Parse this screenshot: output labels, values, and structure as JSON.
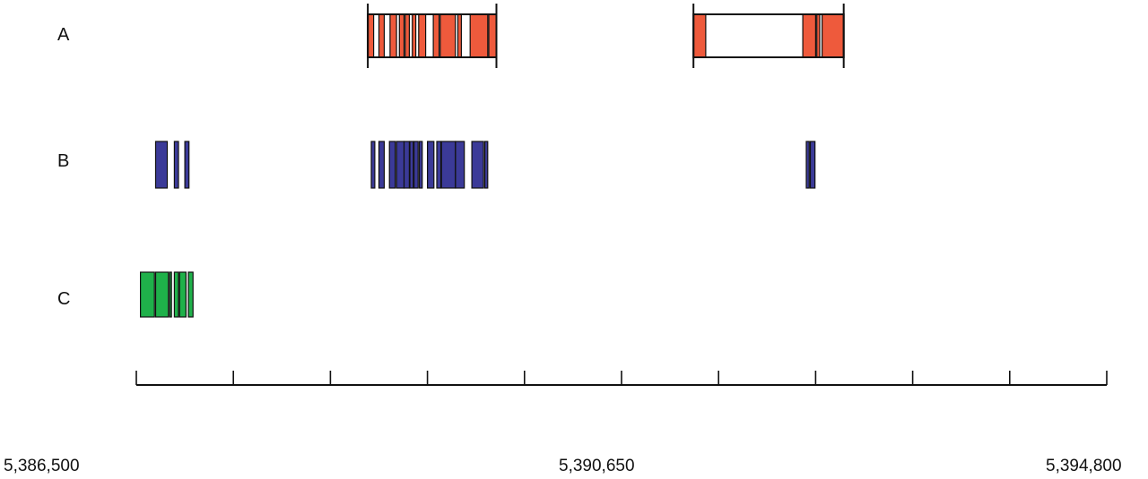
{
  "colors": {
    "track_a": "#ee5a3c",
    "track_b": "#3b3a98",
    "track_c": "#1fb14a",
    "outline": "#111111"
  },
  "tracks": [
    {
      "label": "A",
      "color_key": "track_a",
      "groups": [
        {
          "start": 5388480,
          "end": 5389580
        },
        {
          "start": 5391265,
          "end": 5392550
        }
      ],
      "features": [
        {
          "start": 5388480,
          "end": 5388530
        },
        {
          "start": 5388575,
          "end": 5388620
        },
        {
          "start": 5388670,
          "end": 5388725
        },
        {
          "start": 5388750,
          "end": 5388790
        },
        {
          "start": 5388800,
          "end": 5388835
        },
        {
          "start": 5388860,
          "end": 5388890
        },
        {
          "start": 5388915,
          "end": 5388975
        },
        {
          "start": 5389040,
          "end": 5389090
        },
        {
          "start": 5389100,
          "end": 5389230
        },
        {
          "start": 5389250,
          "end": 5389280
        },
        {
          "start": 5389355,
          "end": 5389505
        },
        {
          "start": 5389515,
          "end": 5389580
        },
        {
          "start": 5391265,
          "end": 5391370
        },
        {
          "start": 5392200,
          "end": 5392310
        },
        {
          "start": 5392320,
          "end": 5392345
        },
        {
          "start": 5392365,
          "end": 5392550
        }
      ]
    },
    {
      "label": "B",
      "color_key": "track_b",
      "features": [
        {
          "start": 5386665,
          "end": 5386765
        },
        {
          "start": 5386825,
          "end": 5386860
        },
        {
          "start": 5386915,
          "end": 5386950
        },
        {
          "start": 5388510,
          "end": 5388540
        },
        {
          "start": 5388575,
          "end": 5388620
        },
        {
          "start": 5388665,
          "end": 5388715
        },
        {
          "start": 5388725,
          "end": 5388790
        },
        {
          "start": 5388790,
          "end": 5388835
        },
        {
          "start": 5388840,
          "end": 5388870
        },
        {
          "start": 5388875,
          "end": 5388910
        },
        {
          "start": 5388920,
          "end": 5388945
        },
        {
          "start": 5388990,
          "end": 5389045
        },
        {
          "start": 5389070,
          "end": 5389105
        },
        {
          "start": 5389110,
          "end": 5389230
        },
        {
          "start": 5389230,
          "end": 5389305
        },
        {
          "start": 5389370,
          "end": 5389470
        },
        {
          "start": 5389480,
          "end": 5389505
        },
        {
          "start": 5392230,
          "end": 5392255
        },
        {
          "start": 5392265,
          "end": 5392305
        }
      ]
    },
    {
      "label": "C",
      "color_key": "track_c",
      "features": [
        {
          "start": 5386535,
          "end": 5386655
        },
        {
          "start": 5386665,
          "end": 5386775
        },
        {
          "start": 5386785,
          "end": 5386800
        },
        {
          "start": 5386825,
          "end": 5386860
        },
        {
          "start": 5386870,
          "end": 5386925
        },
        {
          "start": 5386945,
          "end": 5386985
        }
      ]
    }
  ],
  "axis": {
    "start": 5386500,
    "end": 5394800,
    "tick_values": [
      5386500,
      5386915,
      5387330,
      5387745,
      5388160,
      5388575,
      5388990,
      5389405,
      5389820,
      5390235,
      5390650
    ],
    "labels": [
      "5,386,500",
      "5,390,650",
      "5,394,800"
    ]
  }
}
